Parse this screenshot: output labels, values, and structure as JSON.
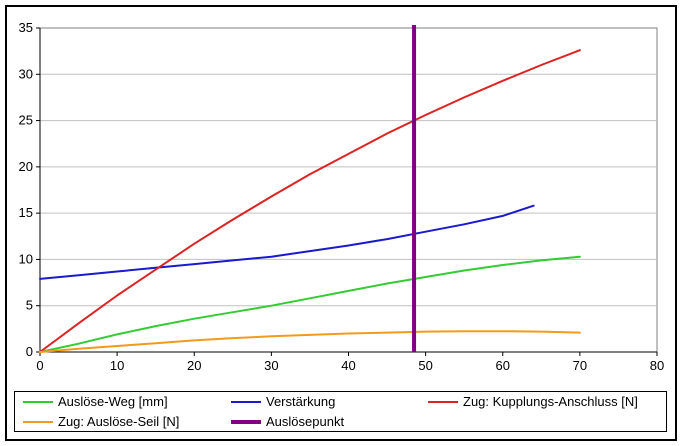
{
  "chart_data": {
    "type": "line",
    "title": "",
    "xlabel": "",
    "ylabel": "",
    "xlim": [
      0,
      80
    ],
    "ylim": [
      0,
      35
    ],
    "x_ticks": [
      0,
      10,
      20,
      30,
      40,
      50,
      60,
      70,
      80
    ],
    "y_ticks": [
      0,
      5,
      10,
      15,
      20,
      25,
      30,
      35
    ],
    "grid": "horizontal",
    "legend_position": "bottom",
    "colors": {
      "gridline": "#c0c0c0",
      "plot_border": "#808080",
      "axis": "#000000",
      "background": "#ffffff"
    },
    "series": [
      {
        "id": "ausloese-weg",
        "name": "Auslöse-Weg [mm]",
        "color": "#33cc33",
        "width": 2,
        "x": [
          0,
          5,
          10,
          15,
          20,
          25,
          30,
          35,
          40,
          45,
          50,
          55,
          60,
          65,
          70
        ],
        "y": [
          0,
          0.9,
          1.9,
          2.8,
          3.6,
          4.3,
          5.0,
          5.8,
          6.6,
          7.4,
          8.1,
          8.8,
          9.4,
          9.9,
          10.3
        ]
      },
      {
        "id": "verstaerkung",
        "name": "Verstärkung",
        "color": "#1a1acc",
        "width": 2,
        "x": [
          0,
          5,
          10,
          15,
          20,
          25,
          30,
          35,
          40,
          45,
          50,
          55,
          60,
          64
        ],
        "y": [
          7.9,
          8.3,
          8.7,
          9.1,
          9.5,
          9.9,
          10.3,
          10.9,
          11.5,
          12.2,
          13.0,
          13.8,
          14.7,
          15.8
        ]
      },
      {
        "id": "zug-kupplungs-anschluss",
        "name": "Zug: Kupplungs-Anschluss [N]",
        "color": "#dd2222",
        "width": 2,
        "x": [
          0,
          5,
          10,
          15,
          20,
          25,
          30,
          35,
          40,
          45,
          50,
          55,
          60,
          65,
          70
        ],
        "y": [
          0,
          3.1,
          6.1,
          8.9,
          11.7,
          14.3,
          16.8,
          19.2,
          21.4,
          23.6,
          25.6,
          27.5,
          29.3,
          31.0,
          32.6
        ]
      },
      {
        "id": "zug-ausloese-seil",
        "name": "Zug: Auslöse-Seil [N]",
        "color": "#f29a1a",
        "width": 2,
        "x": [
          0,
          5,
          10,
          15,
          20,
          25,
          30,
          35,
          40,
          45,
          50,
          55,
          60,
          65,
          70
        ],
        "y": [
          0,
          0.35,
          0.65,
          0.95,
          1.25,
          1.5,
          1.7,
          1.85,
          2.0,
          2.1,
          2.2,
          2.25,
          2.25,
          2.2,
          2.1
        ]
      },
      {
        "id": "ausloesepunkt",
        "name": "Auslösepunkt",
        "color": "#800080",
        "width": 4,
        "type": "vline",
        "x_value": 48.5
      }
    ],
    "legend": {
      "items": [
        {
          "label": "Auslöse-Weg [mm]",
          "color": "#33cc33",
          "thick": false
        },
        {
          "label": "Verstärkung",
          "color": "#1a1acc",
          "thick": false
        },
        {
          "label": "Zug: Kupplungs-Anschluss [N]",
          "color": "#dd2222",
          "thick": false
        },
        {
          "label": "Zug: Auslöse-Seil [N]",
          "color": "#f29a1a",
          "thick": false
        },
        {
          "label": "Auslösepunkt",
          "color": "#800080",
          "thick": true
        }
      ]
    }
  }
}
